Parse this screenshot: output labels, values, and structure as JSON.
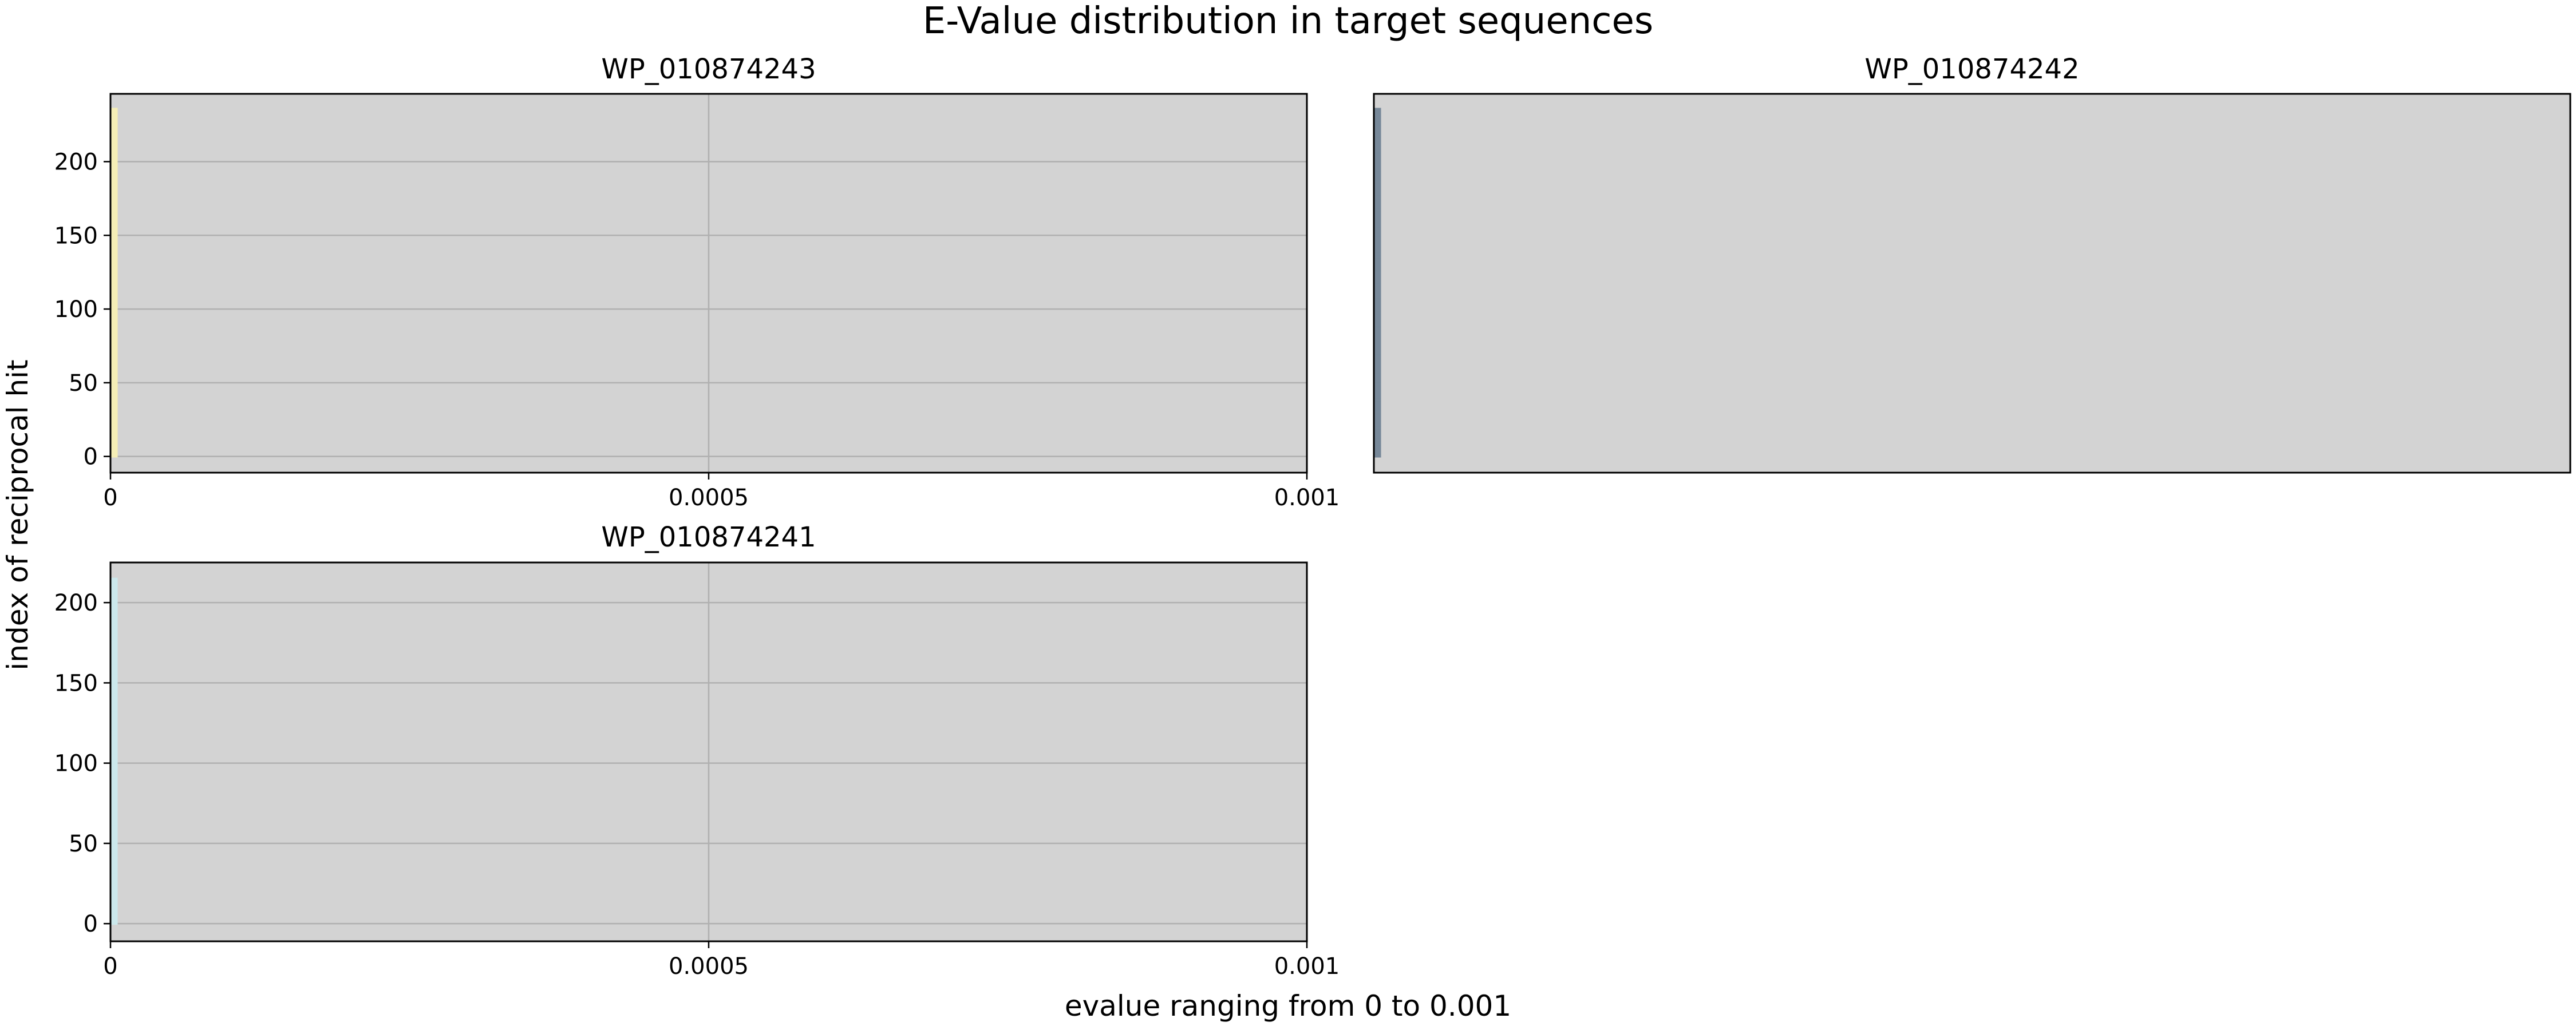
{
  "figure": {
    "title": "E-Value distribution in target sequences",
    "xlabel": "evalue ranging from 0 to 0.001",
    "ylabel": "index of reciprocal hit"
  },
  "colors": {
    "axes_background": "#d3d3d3",
    "grid": "#b0b0b0",
    "frame": "#000000",
    "wp_010874243": "#f5eeb6",
    "wp_010874242": "#778899",
    "wp_010874241": "#cbe8ec"
  },
  "chart_data": [
    {
      "type": "bar",
      "orientation": "horizontal",
      "title": "WP_010874243",
      "xlim": [
        0,
        0.001
      ],
      "ylim": [
        -11,
        246
      ],
      "xticks": [
        0,
        0.0005,
        0.001
      ],
      "xtick_labels": [
        "0",
        "0.0005",
        "0.001"
      ],
      "yticks": [
        0,
        50,
        100,
        150,
        200
      ],
      "ytick_labels": [
        "0",
        "50",
        "100",
        "150",
        "200"
      ],
      "grid": true,
      "show_ticks": true,
      "series": [
        {
          "color": "#f5eeb6",
          "index_range": [
            0,
            236
          ],
          "evalue": 6e-06
        }
      ]
    },
    {
      "type": "bar",
      "orientation": "horizontal",
      "title": "WP_010874242",
      "xlim": [
        0,
        0.001
      ],
      "ylim": [
        -11,
        246
      ],
      "xticks": [],
      "xtick_labels": [],
      "yticks": [],
      "ytick_labels": [],
      "grid": false,
      "show_ticks": false,
      "series": [
        {
          "color": "#778899",
          "index_range": [
            0,
            236
          ],
          "evalue": 6e-06
        }
      ]
    },
    {
      "type": "bar",
      "orientation": "horizontal",
      "title": "WP_010874241",
      "xlim": [
        0,
        0.001
      ],
      "ylim": [
        -11,
        225
      ],
      "xticks": [
        0,
        0.0005,
        0.001
      ],
      "xtick_labels": [
        "0",
        "0.0005",
        "0.001"
      ],
      "yticks": [
        0,
        50,
        100,
        150,
        200
      ],
      "ytick_labels": [
        "0",
        "50",
        "100",
        "150",
        "200"
      ],
      "grid": true,
      "show_ticks": true,
      "series": [
        {
          "color": "#cbe8ec",
          "index_range": [
            0,
            215
          ],
          "evalue": 6e-06
        }
      ]
    }
  ]
}
